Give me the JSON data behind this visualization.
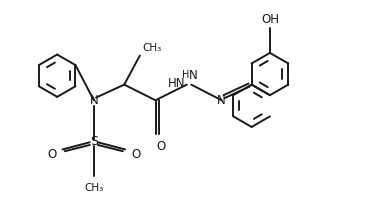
{
  "bg_color": "#ffffff",
  "line_color": "#1a1a1a",
  "lw": 1.4,
  "figsize": [
    3.87,
    2.07
  ],
  "dpi": 100,
  "xlim": [
    0,
    7.5
  ],
  "ylim": [
    -1.8,
    2.8
  ]
}
